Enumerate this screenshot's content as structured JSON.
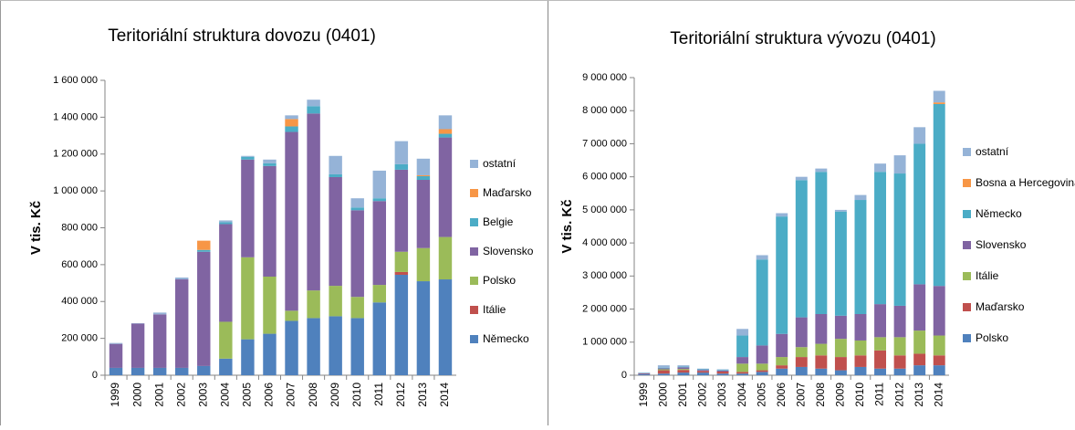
{
  "chart_data": [
    {
      "type": "bar",
      "stacked": true,
      "title": "Teritoriální struktura dovozu (0401)",
      "ylabel": "V tis. Kč",
      "categories": [
        "1999",
        "2000",
        "2001",
        "2002",
        "2003",
        "2004",
        "2005",
        "2006",
        "2007",
        "2008",
        "2009",
        "2010",
        "2011",
        "2012",
        "2013",
        "2014"
      ],
      "ylim": [
        0,
        1600000
      ],
      "yticks": [
        0,
        {
          "value": 200000,
          "label": "200 000"
        },
        {
          "value": 400000,
          "label": "400 000"
        },
        {
          "value": 600000,
          "label": "600 000"
        },
        {
          "value": 800000,
          "label": "800 000"
        },
        {
          "value": 1000000,
          "label": "1 000 000"
        },
        {
          "value": 1200000,
          "label": "1 200 000"
        },
        {
          "value": 1400000,
          "label": "1 400 000"
        },
        {
          "value": 1600000,
          "label": "1 600 000"
        }
      ],
      "legend": "right",
      "series": [
        {
          "name": "Německo",
          "color": "#4f81bd",
          "values": [
            40000,
            40000,
            40000,
            40000,
            50000,
            90000,
            195000,
            225000,
            295000,
            310000,
            320000,
            310000,
            395000,
            545000,
            510000,
            520000
          ]
        },
        {
          "name": "Itálie",
          "color": "#c0504d",
          "values": [
            0,
            0,
            0,
            0,
            0,
            0,
            0,
            0,
            0,
            0,
            0,
            0,
            0,
            15000,
            0,
            0
          ]
        },
        {
          "name": "Polsko",
          "color": "#9bbb59",
          "values": [
            0,
            0,
            0,
            0,
            0,
            200000,
            445000,
            310000,
            55000,
            150000,
            165000,
            115000,
            95000,
            110000,
            180000,
            230000
          ]
        },
        {
          "name": "Slovensko",
          "color": "#8064a2",
          "values": [
            130000,
            240000,
            290000,
            480000,
            620000,
            530000,
            530000,
            600000,
            970000,
            960000,
            590000,
            470000,
            455000,
            445000,
            370000,
            540000
          ]
        },
        {
          "name": "Belgie",
          "color": "#4bacc6",
          "values": [
            0,
            0,
            0,
            0,
            10000,
            10000,
            15000,
            15000,
            30000,
            40000,
            15000,
            15000,
            15000,
            30000,
            20000,
            20000
          ]
        },
        {
          "name": "Maďarsko",
          "color": "#f79646",
          "values": [
            0,
            0,
            0,
            0,
            50000,
            0,
            0,
            0,
            40000,
            0,
            0,
            0,
            0,
            0,
            5000,
            25000
          ]
        },
        {
          "name": "ostatní",
          "color": "#95b3d7",
          "values": [
            5000,
            2000,
            10000,
            10000,
            0,
            10000,
            5000,
            20000,
            20000,
            35000,
            100000,
            50000,
            150000,
            125000,
            90000,
            75000
          ]
        }
      ]
    },
    {
      "type": "bar",
      "stacked": true,
      "title": "Teritoriální struktura vývozu (0401)",
      "ylabel": "V tis. Kč",
      "categories": [
        "1999",
        "2000",
        "2001",
        "2002",
        "2003",
        "2004",
        "2005",
        "2006",
        "2007",
        "2008",
        "2009",
        "2010",
        "2011",
        "2012",
        "2013",
        "2014"
      ],
      "ylim": [
        0,
        9000000
      ],
      "yticks": [
        0,
        {
          "value": 1000000,
          "label": "1 000 000"
        },
        {
          "value": 2000000,
          "label": "2 000 000"
        },
        {
          "value": 3000000,
          "label": "3 000 000"
        },
        {
          "value": 4000000,
          "label": "4 000 000"
        },
        {
          "value": 5000000,
          "label": "5 000 000"
        },
        {
          "value": 6000000,
          "label": "6 000 000"
        },
        {
          "value": 7000000,
          "label": "7 000 000"
        },
        {
          "value": 8000000,
          "label": "8 000 000"
        },
        {
          "value": 9000000,
          "label": "9 000 000"
        }
      ],
      "legend": "right",
      "series": [
        {
          "name": "Polsko",
          "color": "#4f81bd",
          "values": [
            30000,
            50000,
            80000,
            80000,
            50000,
            50000,
            100000,
            200000,
            250000,
            200000,
            150000,
            250000,
            200000,
            200000,
            300000,
            300000
          ]
        },
        {
          "name": "Maďarsko",
          "color": "#c0504d",
          "values": [
            10000,
            100000,
            80000,
            50000,
            60000,
            50000,
            50000,
            100000,
            300000,
            400000,
            400000,
            350000,
            550000,
            400000,
            350000,
            300000
          ]
        },
        {
          "name": "Itálie",
          "color": "#9bbb59",
          "values": [
            0,
            30000,
            30000,
            0,
            0,
            250000,
            200000,
            250000,
            300000,
            350000,
            550000,
            450000,
            400000,
            550000,
            700000,
            600000
          ]
        },
        {
          "name": "Slovensko",
          "color": "#8064a2",
          "values": [
            20000,
            30000,
            50000,
            30000,
            30000,
            200000,
            550000,
            700000,
            900000,
            900000,
            700000,
            800000,
            1000000,
            950000,
            1400000,
            1500000
          ]
        },
        {
          "name": "Německo",
          "color": "#4bacc6",
          "values": [
            10000,
            20000,
            20000,
            20000,
            20000,
            650000,
            2600000,
            3550000,
            4150000,
            4300000,
            3150000,
            3450000,
            4000000,
            4000000,
            4250000,
            5500000
          ]
        },
        {
          "name": "Bosna a Hercegovina",
          "color": "#f79646",
          "values": [
            0,
            0,
            0,
            0,
            0,
            0,
            0,
            0,
            0,
            0,
            0,
            0,
            0,
            0,
            0,
            50000
          ]
        },
        {
          "name": "ostatní",
          "color": "#95b3d7",
          "values": [
            10000,
            70000,
            40000,
            20000,
            20000,
            200000,
            130000,
            100000,
            100000,
            100000,
            50000,
            150000,
            250000,
            550000,
            500000,
            350000
          ]
        }
      ]
    }
  ]
}
